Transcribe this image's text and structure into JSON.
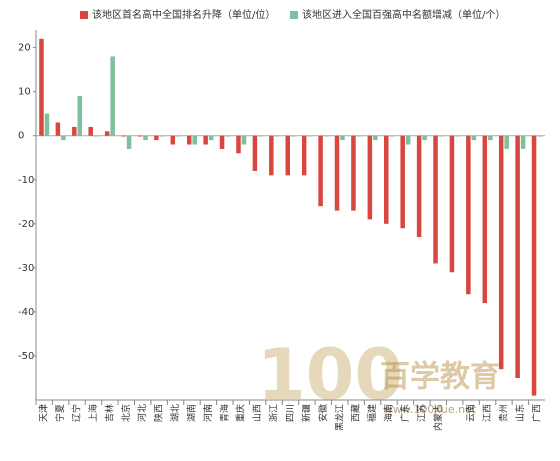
{
  "chart_data": {
    "type": "bar",
    "categories": [
      "天津",
      "宁夏",
      "辽宁",
      "上海",
      "吉林",
      "北京",
      "河北",
      "陕西",
      "湖北",
      "湖南",
      "河南",
      "青海",
      "重庆",
      "山西",
      "浙江",
      "四川",
      "新疆",
      "安徽",
      "黑龙江",
      "西藏",
      "福建",
      "海南",
      "广东",
      "江苏",
      "内蒙古",
      null,
      "云南",
      "江西",
      "贵州",
      "山东",
      "广西"
    ],
    "series": [
      {
        "name": "该地区首名高中全国排名升降（单位/位）",
        "color": "#d9463f",
        "values": [
          22,
          3,
          2,
          2,
          1,
          0,
          0,
          -1,
          -2,
          -2,
          -2,
          -3,
          -4,
          -8,
          -9,
          -9,
          -9,
          -16,
          -17,
          -17,
          -19,
          -20,
          -21,
          -23,
          -29,
          -31,
          -36,
          -38,
          -53,
          -55,
          -59
        ]
      },
      {
        "name": "该地区进入全国百强高中名额增减（单位/个）",
        "color": "#7fbf9c",
        "values": [
          5,
          -1,
          9,
          0,
          18,
          -3,
          -1,
          0,
          0,
          -2,
          -1,
          0,
          -2,
          0,
          0,
          0,
          0,
          0,
          -1,
          0,
          -1,
          0,
          -2,
          -1,
          0,
          0,
          -1,
          -1,
          -3,
          -3,
          0
        ]
      }
    ],
    "ylim": [
      -60,
      24
    ],
    "yticks": [
      20,
      10,
      0,
      -10,
      -20,
      -30,
      -40,
      -50
    ],
    "legend": "top",
    "watermark": {
      "logo": "100",
      "name": "百学教育",
      "url": "www.100xue.net"
    }
  }
}
